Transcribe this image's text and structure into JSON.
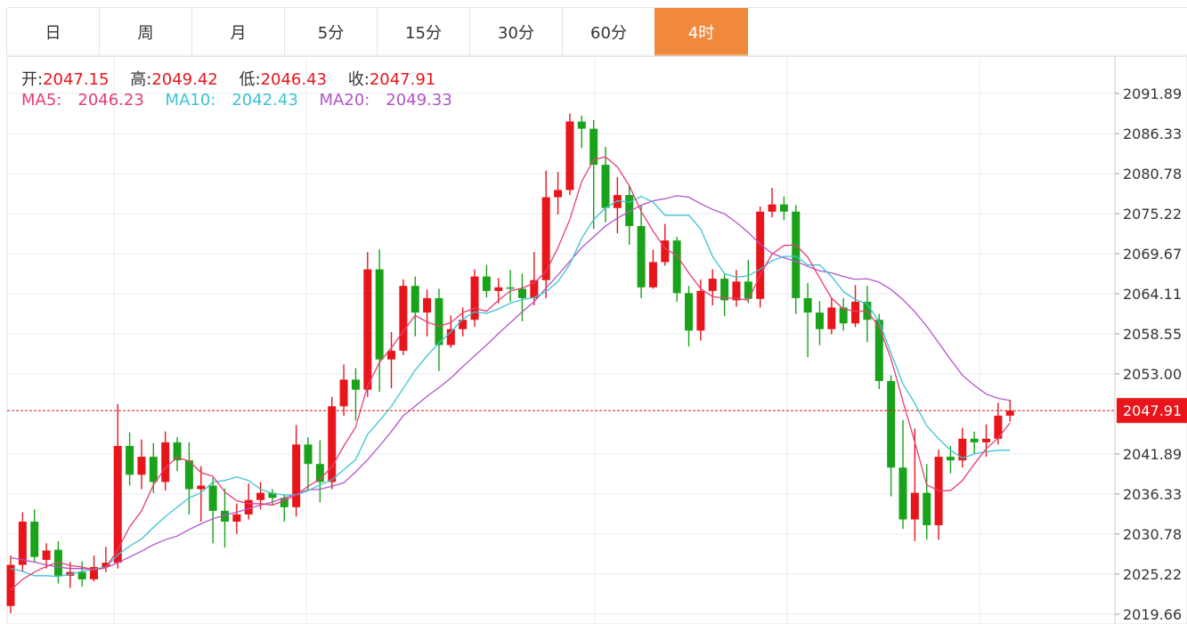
{
  "tabs": [
    {
      "label": "日"
    },
    {
      "label": "周"
    },
    {
      "label": "月"
    },
    {
      "label": "5分"
    },
    {
      "label": "15分"
    },
    {
      "label": "30分"
    },
    {
      "label": "60分"
    },
    {
      "label": "4时",
      "active": true
    }
  ],
  "info": {
    "open_label": "开:",
    "open": "2047.15",
    "high_label": "高:",
    "high": "2049.42",
    "low_label": "低:",
    "low": "2046.43",
    "close_label": "收:",
    "close": "2047.91",
    "ma5_label": "MA5:",
    "ma5": "2046.23",
    "ma10_label": "MA10:",
    "ma10": "2042.43",
    "ma20_label": "MA20:",
    "ma20": "2049.33"
  },
  "colors": {
    "up": "#e8151b",
    "down": "#1aa31a",
    "ma5": "#e83d73",
    "ma10": "#3cc3d3",
    "ma20": "#b454c8",
    "grid": "#e6eef6",
    "active_tab": "#f0893c"
  },
  "chart_data": {
    "type": "candlestick",
    "yticks": [
      "2091.89",
      "2086.33",
      "2080.78",
      "2075.22",
      "2069.67",
      "2064.11",
      "2058.55",
      "2053.00",
      "2041.89",
      "2036.33",
      "2030.78",
      "2025.22",
      "2019.66"
    ],
    "last_price": "2047.91",
    "candles": [
      [
        2020.8,
        2026.5,
        2019.8,
        2027.8
      ],
      [
        2026.5,
        2032.5,
        2025.5,
        2033.8
      ],
      [
        2032.5,
        2027.6,
        2026.8,
        2034.2
      ],
      [
        2027.2,
        2028.5,
        2026.0,
        2029.5
      ],
      [
        2028.6,
        2025.0,
        2023.9,
        2029.8
      ],
      [
        2025.0,
        2025.5,
        2023.3,
        2026.9
      ],
      [
        2025.5,
        2024.5,
        2023.5,
        2027.0
      ],
      [
        2024.5,
        2026.2,
        2024.2,
        2027.8
      ],
      [
        2026.2,
        2026.8,
        2025.5,
        2029.0
      ],
      [
        2026.8,
        2043.0,
        2026.0,
        2048.8
      ],
      [
        2043.0,
        2039.0,
        2037.5,
        2044.9
      ],
      [
        2039.0,
        2041.5,
        2037.0,
        2043.9
      ],
      [
        2041.5,
        2038.0,
        2036.5,
        2043.4
      ],
      [
        2038.0,
        2043.5,
        2036.8,
        2045.0
      ],
      [
        2043.5,
        2041.0,
        2039.5,
        2044.2
      ],
      [
        2041.0,
        2037.0,
        2033.5,
        2043.5
      ],
      [
        2037.0,
        2037.5,
        2032.5,
        2040.2
      ],
      [
        2037.5,
        2034.0,
        2029.5,
        2038.6
      ],
      [
        2034.0,
        2032.5,
        2028.9,
        2037.1
      ],
      [
        2032.5,
        2033.5,
        2030.8,
        2035.0
      ],
      [
        2033.5,
        2035.5,
        2032.8,
        2037.8
      ],
      [
        2035.5,
        2036.5,
        2034.2,
        2038.0
      ],
      [
        2036.5,
        2035.8,
        2034.8,
        2037.0
      ],
      [
        2035.8,
        2034.5,
        2032.5,
        2036.2
      ],
      [
        2034.5,
        2043.2,
        2033.2,
        2045.9
      ],
      [
        2043.2,
        2040.5,
        2036.8,
        2044.2
      ],
      [
        2040.5,
        2038.0,
        2035.2,
        2043.8
      ],
      [
        2038.0,
        2048.5,
        2037.0,
        2049.8
      ],
      [
        2048.5,
        2052.2,
        2047.2,
        2054.3
      ],
      [
        2052.2,
        2050.8,
        2046.5,
        2053.8
      ],
      [
        2050.8,
        2067.5,
        2049.8,
        2069.9
      ],
      [
        2067.5,
        2055.0,
        2050.5,
        2070.3
      ],
      [
        2055.0,
        2056.2,
        2051.0,
        2058.8
      ],
      [
        2056.2,
        2065.2,
        2055.6,
        2066.1
      ],
      [
        2065.2,
        2061.5,
        2058.2,
        2066.5
      ],
      [
        2061.5,
        2063.5,
        2058.2,
        2064.7
      ],
      [
        2063.5,
        2057.0,
        2053.4,
        2064.8
      ],
      [
        2057.0,
        2059.2,
        2056.6,
        2061.1
      ],
      [
        2059.2,
        2060.5,
        2058.2,
        2062.2
      ],
      [
        2060.5,
        2066.5,
        2059.5,
        2067.5
      ],
      [
        2066.5,
        2064.5,
        2063.6,
        2068.1
      ],
      [
        2064.5,
        2065.0,
        2062.8,
        2066.3
      ],
      [
        2065.0,
        2064.8,
        2063.0,
        2067.4
      ],
      [
        2064.8,
        2063.5,
        2060.3,
        2066.9
      ],
      [
        2063.5,
        2066.0,
        2062.5,
        2069.9
      ],
      [
        2066.0,
        2077.5,
        2063.5,
        2081.2
      ],
      [
        2077.5,
        2078.5,
        2075.1,
        2081.0
      ],
      [
        2078.5,
        2088.0,
        2077.8,
        2089.1
      ],
      [
        2088.0,
        2087.0,
        2084.3,
        2088.8
      ],
      [
        2087.0,
        2082.0,
        2073.1,
        2088.2
      ],
      [
        2082.0,
        2076.0,
        2074.0,
        2084.5
      ],
      [
        2076.0,
        2077.8,
        2072.5,
        2080.3
      ],
      [
        2077.8,
        2073.5,
        2070.9,
        2079.1
      ],
      [
        2073.5,
        2065.0,
        2063.5,
        2076.4
      ],
      [
        2065.0,
        2068.5,
        2064.8,
        2070.2
      ],
      [
        2068.5,
        2071.5,
        2068.0,
        2073.8
      ],
      [
        2071.5,
        2064.2,
        2063.0,
        2072.0
      ],
      [
        2064.2,
        2059.0,
        2056.8,
        2065.2
      ],
      [
        2059.0,
        2064.5,
        2057.6,
        2066.1
      ],
      [
        2064.5,
        2066.2,
        2062.5,
        2067.5
      ],
      [
        2066.2,
        2063.2,
        2061.0,
        2066.8
      ],
      [
        2063.2,
        2065.8,
        2062.3,
        2067.4
      ],
      [
        2065.8,
        2063.4,
        2062.8,
        2068.8
      ],
      [
        2063.4,
        2075.5,
        2062.2,
        2076.2
      ],
      [
        2075.5,
        2076.5,
        2074.7,
        2078.8
      ],
      [
        2076.5,
        2075.5,
        2074.3,
        2077.6
      ],
      [
        2075.5,
        2063.5,
        2061.3,
        2076.4
      ],
      [
        2063.5,
        2061.5,
        2055.3,
        2065.6
      ],
      [
        2061.5,
        2059.2,
        2057.0,
        2063.1
      ],
      [
        2059.2,
        2062.2,
        2058.5,
        2063.6
      ],
      [
        2062.2,
        2060.0,
        2059.0,
        2063.5
      ],
      [
        2060.0,
        2063.0,
        2059.5,
        2065.3
      ],
      [
        2063.0,
        2060.5,
        2057.4,
        2065.2
      ],
      [
        2060.5,
        2052.0,
        2050.9,
        2061.3
      ],
      [
        2052.0,
        2040.0,
        2036.0,
        2052.8
      ],
      [
        2040.0,
        2032.8,
        2031.5,
        2046.6
      ],
      [
        2032.8,
        2036.5,
        2029.8,
        2045.4
      ],
      [
        2036.5,
        2032.0,
        2030.0,
        2040.5
      ],
      [
        2032.0,
        2041.5,
        2030.0,
        2042.5
      ],
      [
        2041.5,
        2041.0,
        2039.2,
        2043.0
      ],
      [
        2041.0,
        2044.0,
        2040.0,
        2045.5
      ],
      [
        2044.0,
        2043.5,
        2041.9,
        2045.0
      ],
      [
        2043.5,
        2044.0,
        2041.5,
        2046.0
      ],
      [
        2044.0,
        2047.2,
        2043.2,
        2049.0
      ],
      [
        2047.2,
        2047.9,
        2046.4,
        2049.4
      ]
    ],
    "ma5": [
      2023.0,
      2024.5,
      2025.5,
      2026.3,
      2026.9,
      2026.4,
      2026.2,
      2025.8,
      2026.1,
      2028.6,
      2031.8,
      2034.0,
      2037.6,
      2040.0,
      2041.4,
      2040.9,
      2039.3,
      2038.8,
      2036.6,
      2035.4,
      2035.0,
      2035.0,
      2034.8,
      2035.4,
      2036.2,
      2037.4,
      2038.4,
      2040.1,
      2043.0,
      2045.6,
      2051.3,
      2054.6,
      2056.6,
      2058.9,
      2061.1,
      2060.2,
      2059.6,
      2060.1,
      2061.5,
      2062.1,
      2061.7,
      2063.2,
      2064.5,
      2064.9,
      2065.6,
      2067.2,
      2070.5,
      2074.4,
      2079.7,
      2082.7,
      2083.1,
      2081.7,
      2079.1,
      2075.5,
      2072.8,
      2070.4,
      2069.4,
      2067.0,
      2064.8,
      2063.7,
      2063.5,
      2063.5,
      2063.2,
      2066.7,
      2069.6,
      2070.8,
      2070.9,
      2069.2,
      2066.3,
      2063.5,
      2062.0,
      2061.7,
      2061.7,
      2059.5,
      2055.1,
      2049.2,
      2043.5,
      2037.6,
      2036.8,
      2036.8,
      2038.2,
      2040.5,
      2042.6,
      2044.1,
      2046.2
    ],
    "ma10": [
      2026.0,
      2025.6,
      2025.0,
      2025.0,
      2024.9,
      2025.2,
      2025.6,
      2025.9,
      2026.2,
      2027.9,
      2029.1,
      2030.1,
      2031.7,
      2033.2,
      2034.5,
      2035.8,
      2036.5,
      2038.0,
      2038.2,
      2038.7,
      2038.2,
      2037.0,
      2036.4,
      2036.2,
      2036.2,
      2036.8,
      2037.6,
      2038.3,
      2039.7,
      2041.1,
      2044.6,
      2046.5,
      2048.5,
      2051.0,
      2053.5,
      2055.5,
      2057.3,
      2058.8,
      2060.6,
      2061.6,
      2061.4,
      2062.0,
      2062.8,
      2063.3,
      2063.6,
      2064.4,
      2065.8,
      2068.2,
      2071.8,
      2074.4,
      2076.0,
      2077.0,
      2076.8,
      2077.6,
      2076.8,
      2075.0,
      2075.0,
      2075.0,
      2073.1,
      2069.3,
      2066.9,
      2066.4,
      2066.6,
      2067.5,
      2068.7,
      2069.3,
      2069.3,
      2068.1,
      2068.1,
      2066.5,
      2064.4,
      2063.3,
      2062.7,
      2060.2,
      2055.9,
      2051.6,
      2048.9,
      2045.8,
      2044.0,
      2042.4,
      2041.3,
      2041.9,
      2042.2,
      2042.4,
      2042.4
    ],
    "ma20": [
      2027.5,
      2027.2,
      2026.9,
      2026.5,
      2026.2,
      2026.0,
      2026.0,
      2025.9,
      2026.1,
      2026.8,
      2027.6,
      2028.4,
      2029.3,
      2030.0,
      2030.5,
      2031.4,
      2032.2,
      2032.9,
      2033.4,
      2033.8,
      2034.3,
      2034.8,
      2035.2,
      2035.8,
      2036.3,
      2036.9,
      2037.0,
      2037.4,
      2037.9,
      2039.4,
      2041.1,
      2043.0,
      2045.0,
      2047.2,
      2048.5,
      2049.9,
      2051.1,
      2052.4,
      2054.0,
      2055.5,
      2057.0,
      2058.6,
      2060.1,
      2061.6,
      2063.0,
      2064.9,
      2066.7,
      2068.6,
      2070.5,
      2072.0,
      2073.5,
      2074.6,
      2075.5,
      2076.4,
      2077.0,
      2077.3,
      2077.7,
      2077.5,
      2076.6,
      2075.8,
      2075.2,
      2074.0,
      2072.6,
      2071.0,
      2069.7,
      2069.1,
      2068.6,
      2067.9,
      2067.3,
      2067.0,
      2066.5,
      2066.1,
      2066.2,
      2065.7,
      2064.7,
      2063.3,
      2061.6,
      2059.6,
      2057.3,
      2055.0,
      2052.8,
      2051.4,
      2050.2,
      2049.6,
      2049.3
    ]
  }
}
